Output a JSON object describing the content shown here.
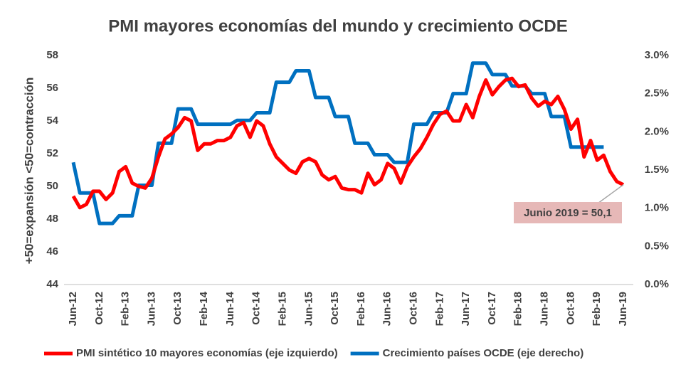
{
  "chart_data": {
    "type": "line",
    "title": "PMI mayores economías del mundo y crecimiento OCDE",
    "ylabel": "+50=expansión <50=contracción",
    "annotation": "Junio 2019 = 50,1",
    "categories": [
      "Jun-12",
      null,
      null,
      null,
      "Oct-12",
      null,
      null,
      null,
      "Feb-13",
      null,
      null,
      null,
      "Jun-13",
      null,
      null,
      null,
      "Oct-13",
      null,
      null,
      null,
      "Feb-14",
      null,
      null,
      null,
      "Jun-14",
      null,
      null,
      null,
      "Oct-14",
      null,
      null,
      null,
      "Feb-15",
      null,
      null,
      null,
      "Jun-15",
      null,
      null,
      null,
      "Oct-15",
      null,
      null,
      null,
      "Feb-16",
      null,
      null,
      null,
      "Jun-16",
      null,
      null,
      null,
      "Oct-16",
      null,
      null,
      null,
      "Feb-17",
      null,
      null,
      null,
      "Jun-17",
      null,
      null,
      null,
      "Oct-17",
      null,
      null,
      null,
      "Feb-18",
      null,
      null,
      null,
      "Jun-18",
      null,
      null,
      null,
      "Oct-18",
      null,
      null,
      null,
      "Feb-19",
      null,
      null,
      null,
      "Jun-19"
    ],
    "series": [
      {
        "name": "PMI sintético 10 mayores economías (eje izquierdo)",
        "color": "#ff0000",
        "values": [
          49.4,
          48.7,
          48.9,
          49.7,
          49.7,
          49.2,
          49.6,
          50.9,
          51.2,
          50.2,
          50.0,
          49.9,
          50.5,
          51.8,
          52.9,
          53.2,
          53.6,
          54.2,
          54.0,
          52.2,
          52.6,
          52.6,
          52.8,
          52.8,
          53.0,
          53.7,
          53.9,
          53.0,
          54.0,
          53.7,
          52.6,
          51.8,
          51.4,
          51.0,
          50.8,
          51.5,
          51.7,
          51.5,
          50.7,
          50.4,
          50.6,
          49.9,
          49.8,
          49.8,
          49.6,
          50.8,
          50.1,
          50.4,
          51.4,
          51.1,
          50.2,
          51.2,
          51.8,
          52.3,
          53.0,
          53.8,
          54.4,
          54.6,
          54.0,
          54.0,
          55.0,
          54.2,
          55.5,
          56.5,
          55.6,
          56.1,
          56.5,
          56.6,
          56.1,
          56.2,
          55.4,
          54.9,
          55.2,
          55.0,
          55.5,
          54.7,
          53.5,
          54.1,
          51.8,
          52.8,
          51.6,
          51.9,
          50.9,
          50.3,
          50.1
        ]
      },
      {
        "name": "Crecimiento países OCDE (eje derecho)",
        "color": "#0070c0",
        "axis": "y2",
        "values": [
          1.6,
          1.2,
          1.2,
          1.2,
          0.8,
          0.8,
          0.8,
          0.9,
          0.9,
          0.9,
          1.3,
          1.3,
          1.3,
          1.85,
          1.85,
          1.85,
          2.3,
          2.3,
          2.3,
          2.1,
          2.1,
          2.1,
          2.1,
          2.1,
          2.1,
          2.15,
          2.15,
          2.15,
          2.25,
          2.25,
          2.25,
          2.65,
          2.65,
          2.65,
          2.8,
          2.8,
          2.8,
          2.45,
          2.45,
          2.45,
          2.2,
          2.2,
          2.2,
          1.85,
          1.85,
          1.85,
          1.7,
          1.7,
          1.7,
          1.6,
          1.6,
          1.6,
          2.1,
          2.1,
          2.1,
          2.25,
          2.25,
          2.25,
          2.5,
          2.5,
          2.5,
          2.9,
          2.9,
          2.9,
          2.75,
          2.75,
          2.75,
          2.6,
          2.6,
          2.6,
          2.5,
          2.5,
          2.5,
          2.2,
          2.2,
          2.2,
          1.8,
          1.8,
          1.8,
          1.8,
          1.8,
          1.8,
          null,
          null,
          null
        ]
      }
    ],
    "ylim": [
      44,
      58
    ],
    "yticks": [
      44,
      46,
      48,
      50,
      52,
      54,
      56,
      58
    ],
    "y2lim": [
      0,
      3
    ],
    "y2ticks": [
      {
        "value": 0,
        "label": "0.0%"
      },
      {
        "value": 0.5,
        "label": "0.5%"
      },
      {
        "value": 1,
        "label": "1.0%"
      },
      {
        "value": 1.5,
        "label": "1.5%"
      },
      {
        "value": 2,
        "label": "2.0%"
      },
      {
        "value": 2.5,
        "label": "2.5%"
      },
      {
        "value": 3,
        "label": "3.0%"
      }
    ],
    "grid": false,
    "legend": "bottom"
  }
}
